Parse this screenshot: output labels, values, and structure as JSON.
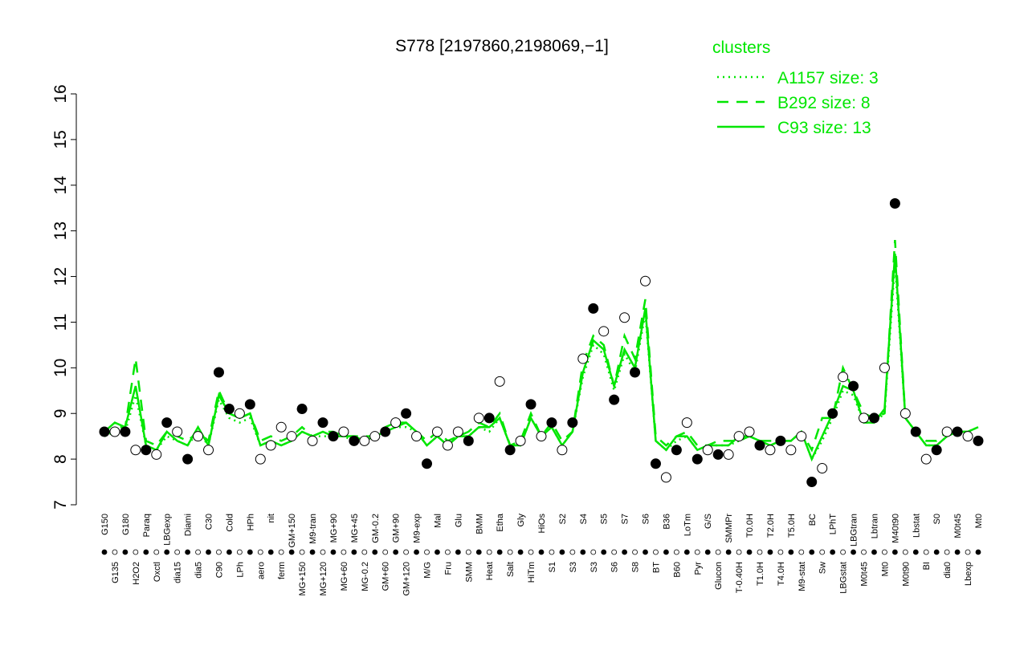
{
  "chart_data": {
    "type": "line",
    "title": "S778 [2197860,2198069,−1]",
    "legend_title": "clusters",
    "legend_color": "#00e600",
    "categories": [
      "G150",
      "G135",
      "G180",
      "H2O2",
      "Paraq",
      "Oxctl",
      "LBGexp",
      "dia15",
      "Diami",
      "dia5",
      "C30",
      "C90",
      "Cold",
      "LPh",
      "HPh",
      "aero",
      "nit",
      "ferm",
      "GM+150",
      "MG+150",
      "M9-tran",
      "MG+120",
      "MG+90",
      "MG+60",
      "MG+45",
      "MG-0.2",
      "GM-0.2",
      "GM+60",
      "GM+90",
      "GM+120",
      "M9-exp",
      "M/G",
      "Mal",
      "Fru",
      "Glu",
      "SMM",
      "BMM",
      "Heat",
      "Etha",
      "Salt",
      "Gly",
      "HiTm",
      "HiOs",
      "S1",
      "S2",
      "S3",
      "S4",
      "S3",
      "S5",
      "S6",
      "S7",
      "S8",
      "S6",
      "BT",
      "B36",
      "B60",
      "LoTm",
      "Pyr",
      "G/S",
      "Glucon",
      "SMMPr",
      "T-0.40H",
      "T0.0H",
      "T1.0H",
      "T2.0H",
      "T4.0H",
      "T5.0H",
      "M9-stat",
      "BC",
      "Sw",
      "LPhT",
      "LBGstat",
      "LBGtran",
      "M0t45",
      "Lbtran",
      "Mt0",
      "M40t90",
      "M0t90",
      "Lbstat",
      "BI",
      "S0",
      "dia0",
      "M0t45",
      "Lbexp",
      "Mt0"
    ],
    "points": {
      "values": [
        8.6,
        8.6,
        8.6,
        8.2,
        8.2,
        8.1,
        8.8,
        8.6,
        8.0,
        8.5,
        8.2,
        9.9,
        9.1,
        9.0,
        9.2,
        8.0,
        8.3,
        8.7,
        8.5,
        9.1,
        8.4,
        8.8,
        8.5,
        8.6,
        8.4,
        8.4,
        8.5,
        8.6,
        8.8,
        9.0,
        8.5,
        7.9,
        8.6,
        8.3,
        8.6,
        8.4,
        8.9,
        8.9,
        9.7,
        8.2,
        8.4,
        9.2,
        8.5,
        8.8,
        8.2,
        8.8,
        10.2,
        11.3,
        10.8,
        9.3,
        11.1,
        9.9,
        11.9,
        7.9,
        7.6,
        8.2,
        8.8,
        8.0,
        8.2,
        8.1,
        8.1,
        8.5,
        8.6,
        8.3,
        8.2,
        8.4,
        8.2,
        8.5,
        7.5,
        7.8,
        9.0,
        9.8,
        9.6,
        8.9,
        8.9,
        10.0,
        13.6,
        9.0,
        8.6,
        8.0,
        8.2,
        8.6,
        8.6,
        8.5,
        8.4
      ],
      "fills": [
        "#000",
        "#fff",
        "#000",
        "#fff",
        "#000",
        "#fff",
        "#000",
        "#fff",
        "#000",
        "#fff",
        "#fff",
        "#000",
        "#000",
        "#fff",
        "#000",
        "#fff",
        "#fff",
        "#fff",
        "#fff",
        "#000",
        "#fff",
        "#000",
        "#000",
        "#fff",
        "#000",
        "#fff",
        "#fff",
        "#000",
        "#fff",
        "#000",
        "#fff",
        "#000",
        "#fff",
        "#fff",
        "#fff",
        "#000",
        "#fff",
        "#000",
        "#fff",
        "#000",
        "#fff",
        "#000",
        "#fff",
        "#000",
        "#fff",
        "#000",
        "#fff",
        "#000",
        "#fff",
        "#000",
        "#fff",
        "#000",
        "#fff",
        "#000",
        "#fff",
        "#000",
        "#fff",
        "#000",
        "#fff",
        "#000",
        "#fff",
        "#fff",
        "#fff",
        "#000",
        "#fff",
        "#000",
        "#fff",
        "#fff",
        "#000",
        "#fff",
        "#000",
        "#fff",
        "#000",
        "#fff",
        "#000",
        "#fff",
        "#000",
        "#fff",
        "#000",
        "#fff",
        "#000",
        "#fff",
        "#000",
        "#fff",
        "#000"
      ]
    },
    "series": [
      {
        "name": "A1157 size: 3",
        "color": "#00e600",
        "dash": "2,5",
        "values": [
          8.5,
          8.6,
          8.6,
          9.4,
          8.3,
          8.2,
          8.5,
          8.4,
          8.3,
          8.6,
          8.3,
          9.3,
          8.9,
          8.8,
          8.9,
          8.3,
          8.4,
          8.3,
          8.4,
          8.6,
          8.5,
          8.5,
          8.5,
          8.5,
          8.4,
          8.4,
          8.5,
          8.6,
          8.7,
          8.7,
          8.6,
          8.3,
          8.5,
          8.3,
          8.5,
          8.5,
          8.7,
          8.6,
          8.9,
          8.3,
          8.3,
          8.9,
          8.5,
          8.7,
          8.3,
          8.6,
          9.8,
          10.5,
          10.3,
          9.5,
          10.3,
          9.9,
          11.2,
          8.4,
          8.2,
          8.4,
          8.5,
          8.2,
          8.3,
          8.3,
          8.3,
          8.4,
          8.5,
          8.4,
          8.3,
          8.4,
          8.4,
          8.6,
          8.0,
          8.4,
          8.9,
          9.5,
          9.4,
          8.8,
          8.8,
          9.0,
          12.3,
          8.9,
          8.6,
          8.3,
          8.3,
          8.5,
          8.6,
          8.6,
          8.7
        ]
      },
      {
        "name": "B292 size: 8",
        "color": "#00e600",
        "dash": "14,10",
        "values": [
          8.5,
          8.7,
          8.7,
          10.2,
          8.4,
          8.3,
          8.6,
          8.5,
          8.4,
          8.6,
          8.4,
          9.5,
          9.0,
          8.9,
          9.0,
          8.4,
          8.5,
          8.4,
          8.5,
          8.7,
          8.5,
          8.6,
          8.6,
          8.5,
          8.5,
          8.5,
          8.5,
          8.7,
          8.8,
          8.8,
          8.6,
          8.4,
          8.6,
          8.4,
          8.5,
          8.6,
          8.8,
          8.7,
          9.0,
          8.3,
          8.4,
          9.0,
          8.5,
          8.8,
          8.4,
          8.6,
          10.1,
          10.7,
          10.5,
          9.6,
          10.7,
          10.2,
          11.5,
          8.5,
          8.3,
          8.5,
          8.6,
          8.3,
          8.3,
          8.4,
          8.4,
          8.4,
          8.5,
          8.4,
          8.4,
          8.4,
          8.4,
          8.6,
          8.2,
          8.9,
          8.9,
          10.0,
          9.5,
          9.0,
          8.9,
          9.0,
          12.8,
          8.9,
          8.6,
          8.4,
          8.4,
          8.6,
          8.6,
          8.6,
          8.7
        ]
      },
      {
        "name": "C93 size: 13",
        "color": "#00e600",
        "dash": "",
        "values": [
          8.6,
          8.8,
          8.7,
          9.6,
          8.3,
          8.2,
          8.6,
          8.4,
          8.3,
          8.7,
          8.3,
          9.4,
          9.0,
          8.9,
          9.0,
          8.3,
          8.4,
          8.3,
          8.4,
          8.6,
          8.5,
          8.6,
          8.5,
          8.5,
          8.5,
          8.4,
          8.5,
          8.6,
          8.7,
          8.8,
          8.6,
          8.3,
          8.5,
          8.3,
          8.5,
          8.5,
          8.7,
          8.7,
          8.9,
          8.3,
          8.3,
          8.9,
          8.5,
          8.7,
          8.3,
          8.6,
          9.9,
          10.6,
          10.4,
          9.6,
          10.4,
          10.0,
          11.3,
          8.4,
          8.2,
          8.5,
          8.5,
          8.2,
          8.3,
          8.3,
          8.3,
          8.5,
          8.5,
          8.4,
          8.3,
          8.4,
          8.4,
          8.6,
          8.0,
          8.5,
          9.0,
          9.6,
          9.5,
          8.8,
          8.8,
          9.1,
          12.5,
          8.9,
          8.6,
          8.3,
          8.3,
          8.5,
          8.6,
          8.6,
          8.7
        ]
      }
    ],
    "ylim": [
      7,
      16
    ],
    "yticks": [
      7,
      8,
      9,
      10,
      11,
      12,
      13,
      14,
      15,
      16
    ]
  }
}
